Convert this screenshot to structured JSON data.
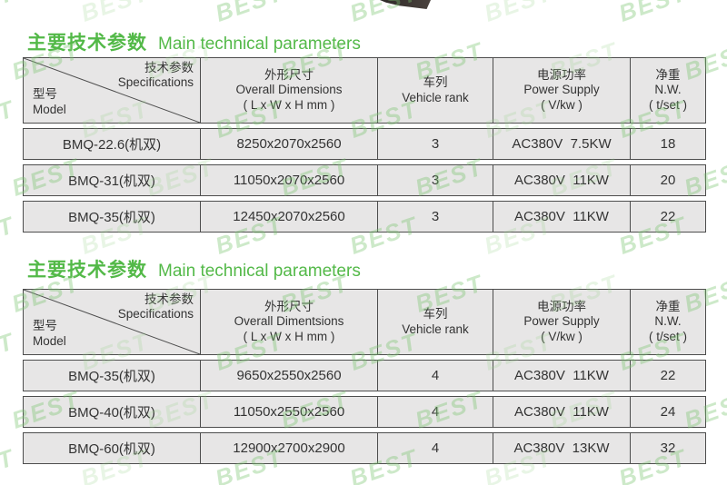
{
  "watermark": {
    "text": "BEST"
  },
  "colors": {
    "accent_green": "#53b948",
    "cell_background": "#e7e6e6",
    "table_border": "#4d4d4d",
    "cell_text": "#333333",
    "watermark_green": "#7cc470"
  },
  "sections": [
    {
      "title_zh": "主要技术参数",
      "title_en": "Main technical parameters",
      "table": {
        "corner": {
          "top_zh": "技术参数",
          "top_en": "Specifications",
          "bottom_zh": "型号",
          "bottom_en": "Model"
        },
        "columns": [
          {
            "zh": "外形尺寸",
            "en": "Overall Dimensions",
            "unit": "( L x W x H mm )"
          },
          {
            "zh": "车列",
            "en": "Vehicle rank"
          },
          {
            "zh": "电源功率",
            "en": "Power Supply",
            "unit": "( V/kw )"
          },
          {
            "zh": "净重",
            "en": "N.W.",
            "unit": "( t/set )"
          }
        ],
        "rows": [
          [
            "BMQ-22.6(机双)",
            "8250x2070x2560",
            "3",
            "AC380V  7.5KW",
            "18"
          ],
          [
            "BMQ-31(机双)",
            "11050x2070x2560",
            "3",
            "AC380V  11KW",
            "20"
          ],
          [
            "BMQ-35(机双)",
            "12450x2070x2560",
            "3",
            "AC380V  11KW",
            "22"
          ]
        ]
      }
    },
    {
      "title_zh": "主要技术参数",
      "title_en": "Main technical parameters",
      "table": {
        "corner": {
          "top_zh": "技术参数",
          "top_en": "Specifications",
          "bottom_zh": "型号",
          "bottom_en": "Model"
        },
        "columns": [
          {
            "zh": "外形尺寸",
            "en": "Overall Dimentsions",
            "unit": "( L x W x H mm )"
          },
          {
            "zh": "车列",
            "en": "Vehicle rank"
          },
          {
            "zh": "电源功率",
            "en": "Power Supply",
            "unit": "( V/kw )"
          },
          {
            "zh": "净重",
            "en": "N.W.",
            "unit": "( t/set )"
          }
        ],
        "rows": [
          [
            "BMQ-35(机双)",
            "9650x2550x2560",
            "4",
            "AC380V  11KW",
            "22"
          ],
          [
            "BMQ-40(机双)",
            "11050x2550x2560",
            "4",
            "AC380V  11KW",
            "24"
          ],
          [
            "BMQ-60(机双)",
            "12900x2700x2900",
            "4",
            "AC380V  13KW",
            "32"
          ]
        ]
      }
    }
  ]
}
